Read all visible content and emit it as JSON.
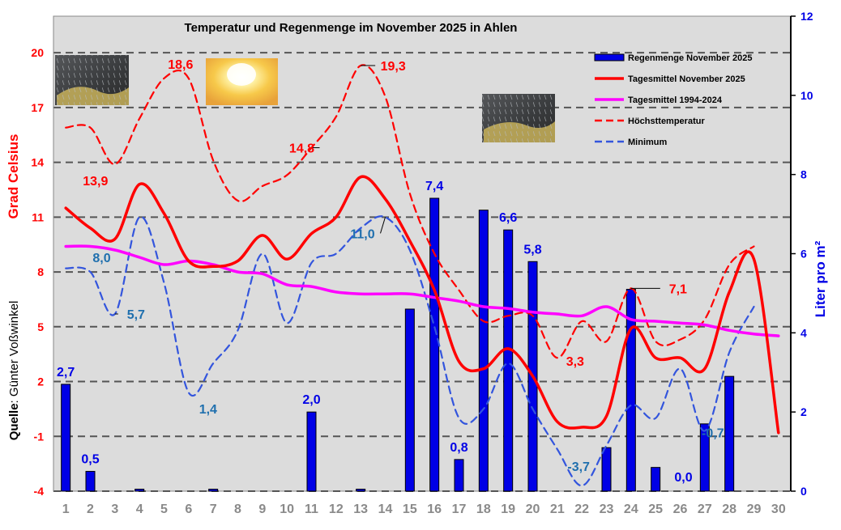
{
  "chart_data": {
    "type": "bar+line",
    "title": "Temperatur und Regenmenge im November 2025 in Ahlen",
    "ylabel_left": "Grad Celsius",
    "ylabel_right": "Liter pro m²",
    "source_label": "Quelle",
    "source_name": ": Günter Voßwinkel",
    "ylim_left": [
      -4,
      22
    ],
    "ylim_right": [
      0,
      12
    ],
    "y_ticks_left": [
      "-4",
      "-1",
      "2",
      "5",
      "8",
      "11",
      "14",
      "17",
      "20"
    ],
    "y_ticks_right": [
      "0",
      "2",
      "4",
      "6",
      "8",
      "10",
      "12"
    ],
    "x_ticks": [
      "1",
      "2",
      "3",
      "4",
      "5",
      "6",
      "7",
      "8",
      "9",
      "10",
      "11",
      "12",
      "13",
      "14",
      "15",
      "16",
      "17",
      "18",
      "19",
      "20",
      "21",
      "22",
      "23",
      "24",
      "25",
      "26",
      "27",
      "28",
      "29",
      "30"
    ],
    "legend": [
      {
        "label": "Regenmenge November 2025",
        "color": "#0000e6",
        "style": "bar"
      },
      {
        "label": "Tagesmittel November 2025",
        "color": "#ff0000",
        "style": "solid"
      },
      {
        "label": "Tagesmittel 1994-2024",
        "color": "#ff00ff",
        "style": "solid"
      },
      {
        "label": "Höchsttemperatur",
        "color": "#ff0000",
        "style": "dashed"
      },
      {
        "label": "Minimum",
        "color": "#3355dd",
        "style": "dashed"
      }
    ],
    "series": [
      {
        "name": "Regenmenge November 2025",
        "axis": "right",
        "type": "bar",
        "values": [
          2.7,
          0.5,
          0,
          0.05,
          0,
          0,
          0.05,
          0,
          0,
          0,
          2.0,
          0,
          0.05,
          0,
          4.6,
          7.4,
          0.8,
          7.1,
          6.6,
          5.8,
          0,
          0,
          1.1,
          5.1,
          0.6,
          0.0,
          1.7,
          2.9,
          0,
          0
        ]
      },
      {
        "name": "Tagesmittel November 2025",
        "axis": "left",
        "type": "line",
        "values": [
          11.5,
          10.4,
          9.8,
          12.8,
          11.2,
          8.6,
          8.3,
          8.6,
          10.0,
          8.7,
          10.1,
          11.0,
          13.2,
          12.0,
          9.7,
          7.0,
          3.1,
          2.7,
          3.8,
          2.3,
          -0.2,
          -0.5,
          0.1,
          4.9,
          3.3,
          3.3,
          2.7,
          6.9,
          8.7,
          -0.8
        ]
      },
      {
        "name": "Tagesmittel 1994-2024",
        "axis": "left",
        "type": "line",
        "values": [
          9.4,
          9.4,
          9.2,
          8.8,
          8.4,
          8.6,
          8.4,
          8.0,
          7.9,
          7.3,
          7.2,
          6.9,
          6.8,
          6.8,
          6.8,
          6.6,
          6.4,
          6.1,
          6.0,
          5.8,
          5.7,
          5.6,
          6.1,
          5.4,
          5.3,
          5.2,
          5.1,
          4.8,
          4.6,
          4.5
        ]
      },
      {
        "name": "Höchsttemperatur",
        "axis": "left",
        "type": "line",
        "values": [
          15.9,
          15.9,
          13.9,
          16.4,
          18.6,
          18.6,
          14.1,
          11.9,
          12.7,
          13.3,
          14.8,
          16.5,
          19.3,
          17.6,
          12.3,
          9.0,
          7.0,
          5.3,
          5.6,
          5.6,
          3.3,
          5.3,
          4.2,
          7.1,
          4.2,
          4.3,
          5.4,
          8.4,
          9.4,
          null
        ]
      },
      {
        "name": "Minimum",
        "axis": "left",
        "type": "line",
        "values": [
          8.2,
          8.0,
          5.7,
          11.0,
          7.4,
          1.4,
          3.0,
          4.8,
          9.0,
          5.2,
          8.5,
          9.0,
          10.4,
          11.0,
          9.2,
          5.0,
          0.0,
          0.5,
          3.0,
          0.5,
          -1.7,
          -3.7,
          -1.5,
          0.7,
          0.0,
          2.7,
          -0.7,
          3.6,
          6.1,
          null
        ]
      }
    ],
    "data_labels": [
      {
        "text": "2,7",
        "day": 1,
        "color": "#0000e6"
      },
      {
        "text": "0,5",
        "day": 2,
        "color": "#0000e6"
      },
      {
        "text": "2,0",
        "day": 11,
        "color": "#0000e6"
      },
      {
        "text": "7,4",
        "day": 16,
        "color": "#0000e6"
      },
      {
        "text": "0,8",
        "day": 17,
        "color": "#0000e6"
      },
      {
        "text": "6,6",
        "day": 19,
        "color": "#0000e6"
      },
      {
        "text": "5,8",
        "day": 20,
        "color": "#0000e6"
      },
      {
        "text": "0,0",
        "day": 26,
        "color": "#0000e6"
      },
      {
        "text": "13,9",
        "day": 3,
        "color": "#ff0000"
      },
      {
        "text": "18,6",
        "day": 6,
        "color": "#ff0000"
      },
      {
        "text": "14,8",
        "day": 11,
        "color": "#ff0000"
      },
      {
        "text": "19,3",
        "day": 13,
        "color": "#ff0000"
      },
      {
        "text": "3,3",
        "day": 21,
        "color": "#ff0000"
      },
      {
        "text": "7,1",
        "day": 24,
        "color": "#ff0000"
      },
      {
        "text": "8,0",
        "day": 2,
        "color": "#1f6fae"
      },
      {
        "text": "5,7",
        "day": 3,
        "color": "#1f6fae"
      },
      {
        "text": "1,4",
        "day": 6,
        "color": "#1f6fae"
      },
      {
        "text": "11,0",
        "day": 14,
        "color": "#1f6fae"
      },
      {
        "text": "-3,7",
        "day": 22,
        "color": "#1f6fae"
      },
      {
        "text": "-0,7",
        "day": 27,
        "color": "#1f6fae"
      }
    ],
    "weather_icons": [
      "rain-photo-icon",
      "sun-photo-icon",
      "rain-photo-icon"
    ]
  }
}
